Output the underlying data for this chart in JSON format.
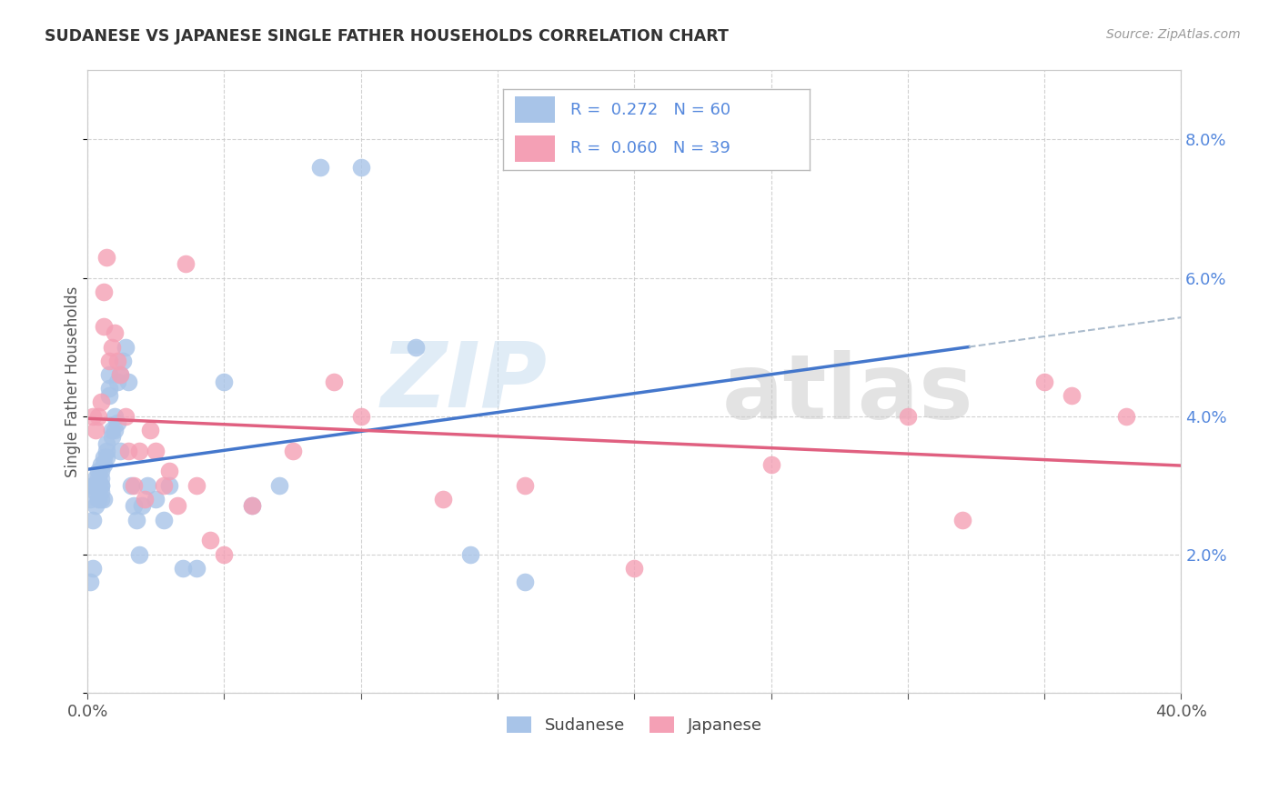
{
  "title": "SUDANESE VS JAPANESE SINGLE FATHER HOUSEHOLDS CORRELATION CHART",
  "source": "Source: ZipAtlas.com",
  "ylabel": "Single Father Households",
  "xlim": [
    0.0,
    0.4
  ],
  "ylim": [
    0.0,
    0.09
  ],
  "sudanese_R": 0.272,
  "sudanese_N": 60,
  "japanese_R": 0.06,
  "japanese_N": 39,
  "sudanese_color": "#a8c4e8",
  "japanese_color": "#f4a0b5",
  "line_sudanese_color": "#4477cc",
  "line_japanese_color": "#e06080",
  "dashed_color": "#aabbcc",
  "sudanese_x": [
    0.001,
    0.001,
    0.002,
    0.002,
    0.002,
    0.003,
    0.003,
    0.003,
    0.003,
    0.003,
    0.004,
    0.004,
    0.004,
    0.004,
    0.005,
    0.005,
    0.005,
    0.005,
    0.005,
    0.005,
    0.005,
    0.006,
    0.006,
    0.006,
    0.007,
    0.007,
    0.007,
    0.008,
    0.008,
    0.008,
    0.009,
    0.009,
    0.01,
    0.01,
    0.011,
    0.011,
    0.012,
    0.012,
    0.013,
    0.014,
    0.015,
    0.016,
    0.017,
    0.018,
    0.019,
    0.02,
    0.022,
    0.025,
    0.028,
    0.03,
    0.035,
    0.04,
    0.05,
    0.06,
    0.07,
    0.085,
    0.1,
    0.12,
    0.14,
    0.16
  ],
  "sudanese_y": [
    0.028,
    0.016,
    0.03,
    0.025,
    0.018,
    0.03,
    0.031,
    0.029,
    0.027,
    0.03,
    0.032,
    0.031,
    0.03,
    0.028,
    0.028,
    0.029,
    0.031,
    0.03,
    0.032,
    0.033,
    0.03,
    0.033,
    0.034,
    0.028,
    0.035,
    0.036,
    0.034,
    0.044,
    0.046,
    0.043,
    0.037,
    0.038,
    0.038,
    0.04,
    0.039,
    0.045,
    0.046,
    0.035,
    0.048,
    0.05,
    0.045,
    0.03,
    0.027,
    0.025,
    0.02,
    0.027,
    0.03,
    0.028,
    0.025,
    0.03,
    0.018,
    0.018,
    0.045,
    0.027,
    0.03,
    0.076,
    0.076,
    0.05,
    0.02,
    0.016
  ],
  "japanese_x": [
    0.002,
    0.003,
    0.004,
    0.005,
    0.006,
    0.006,
    0.007,
    0.008,
    0.009,
    0.01,
    0.011,
    0.012,
    0.014,
    0.015,
    0.017,
    0.019,
    0.021,
    0.023,
    0.025,
    0.028,
    0.03,
    0.033,
    0.036,
    0.04,
    0.045,
    0.05,
    0.06,
    0.075,
    0.09,
    0.1,
    0.13,
    0.16,
    0.2,
    0.25,
    0.3,
    0.32,
    0.35,
    0.36,
    0.38
  ],
  "japanese_y": [
    0.04,
    0.038,
    0.04,
    0.042,
    0.053,
    0.058,
    0.063,
    0.048,
    0.05,
    0.052,
    0.048,
    0.046,
    0.04,
    0.035,
    0.03,
    0.035,
    0.028,
    0.038,
    0.035,
    0.03,
    0.032,
    0.027,
    0.062,
    0.03,
    0.022,
    0.02,
    0.027,
    0.035,
    0.045,
    0.04,
    0.028,
    0.03,
    0.018,
    0.033,
    0.04,
    0.025,
    0.045,
    0.043,
    0.04
  ]
}
